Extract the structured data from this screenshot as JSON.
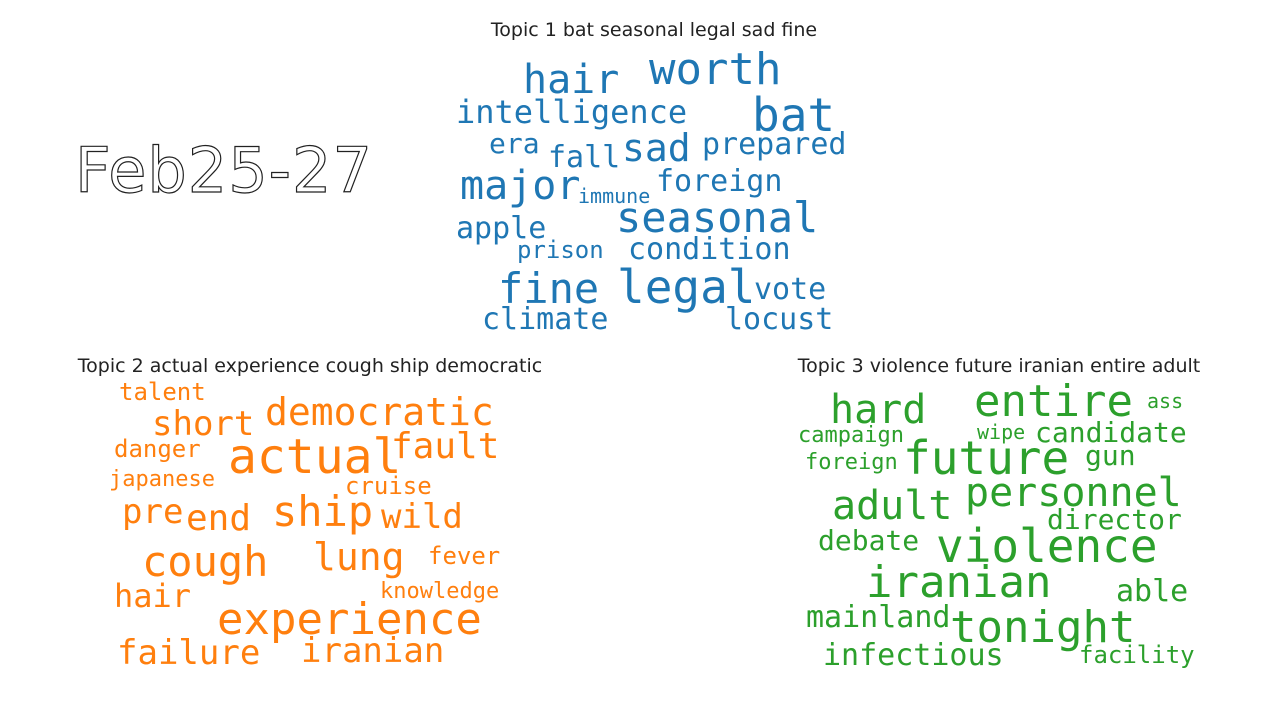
{
  "date_label": "Feb25-27",
  "topics": [
    {
      "title": "Topic 1 bat seasonal legal sad fine",
      "color": "#1f77b4",
      "words": [
        "hair",
        "worth",
        "intelligence",
        "bat",
        "era",
        "fall",
        "sad",
        "prepared",
        "major",
        "immune",
        "foreign",
        "seasonal",
        "apple",
        "prison",
        "condition",
        "fine",
        "legal",
        "vote",
        "climate",
        "locust"
      ]
    },
    {
      "title": "Topic 2 actual experience cough ship democratic",
      "color": "#ff7f0e",
      "words": [
        "talent",
        "short",
        "democratic",
        "danger",
        "actual",
        "fault",
        "japanese",
        "cruise",
        "pre",
        "end",
        "ship",
        "wild",
        "cough",
        "lung",
        "fever",
        "hair",
        "knowledge",
        "experience",
        "failure",
        "iranian"
      ]
    },
    {
      "title": "Topic 3 violence future iranian entire adult",
      "color": "#2ca02c",
      "words": [
        "hard",
        "entire",
        "ass",
        "campaign",
        "wipe",
        "candidate",
        "foreign",
        "future",
        "gun",
        "adult",
        "personnel",
        "director",
        "debate",
        "violence",
        "iranian",
        "able",
        "mainland",
        "tonight",
        "infectious",
        "facility"
      ]
    }
  ]
}
